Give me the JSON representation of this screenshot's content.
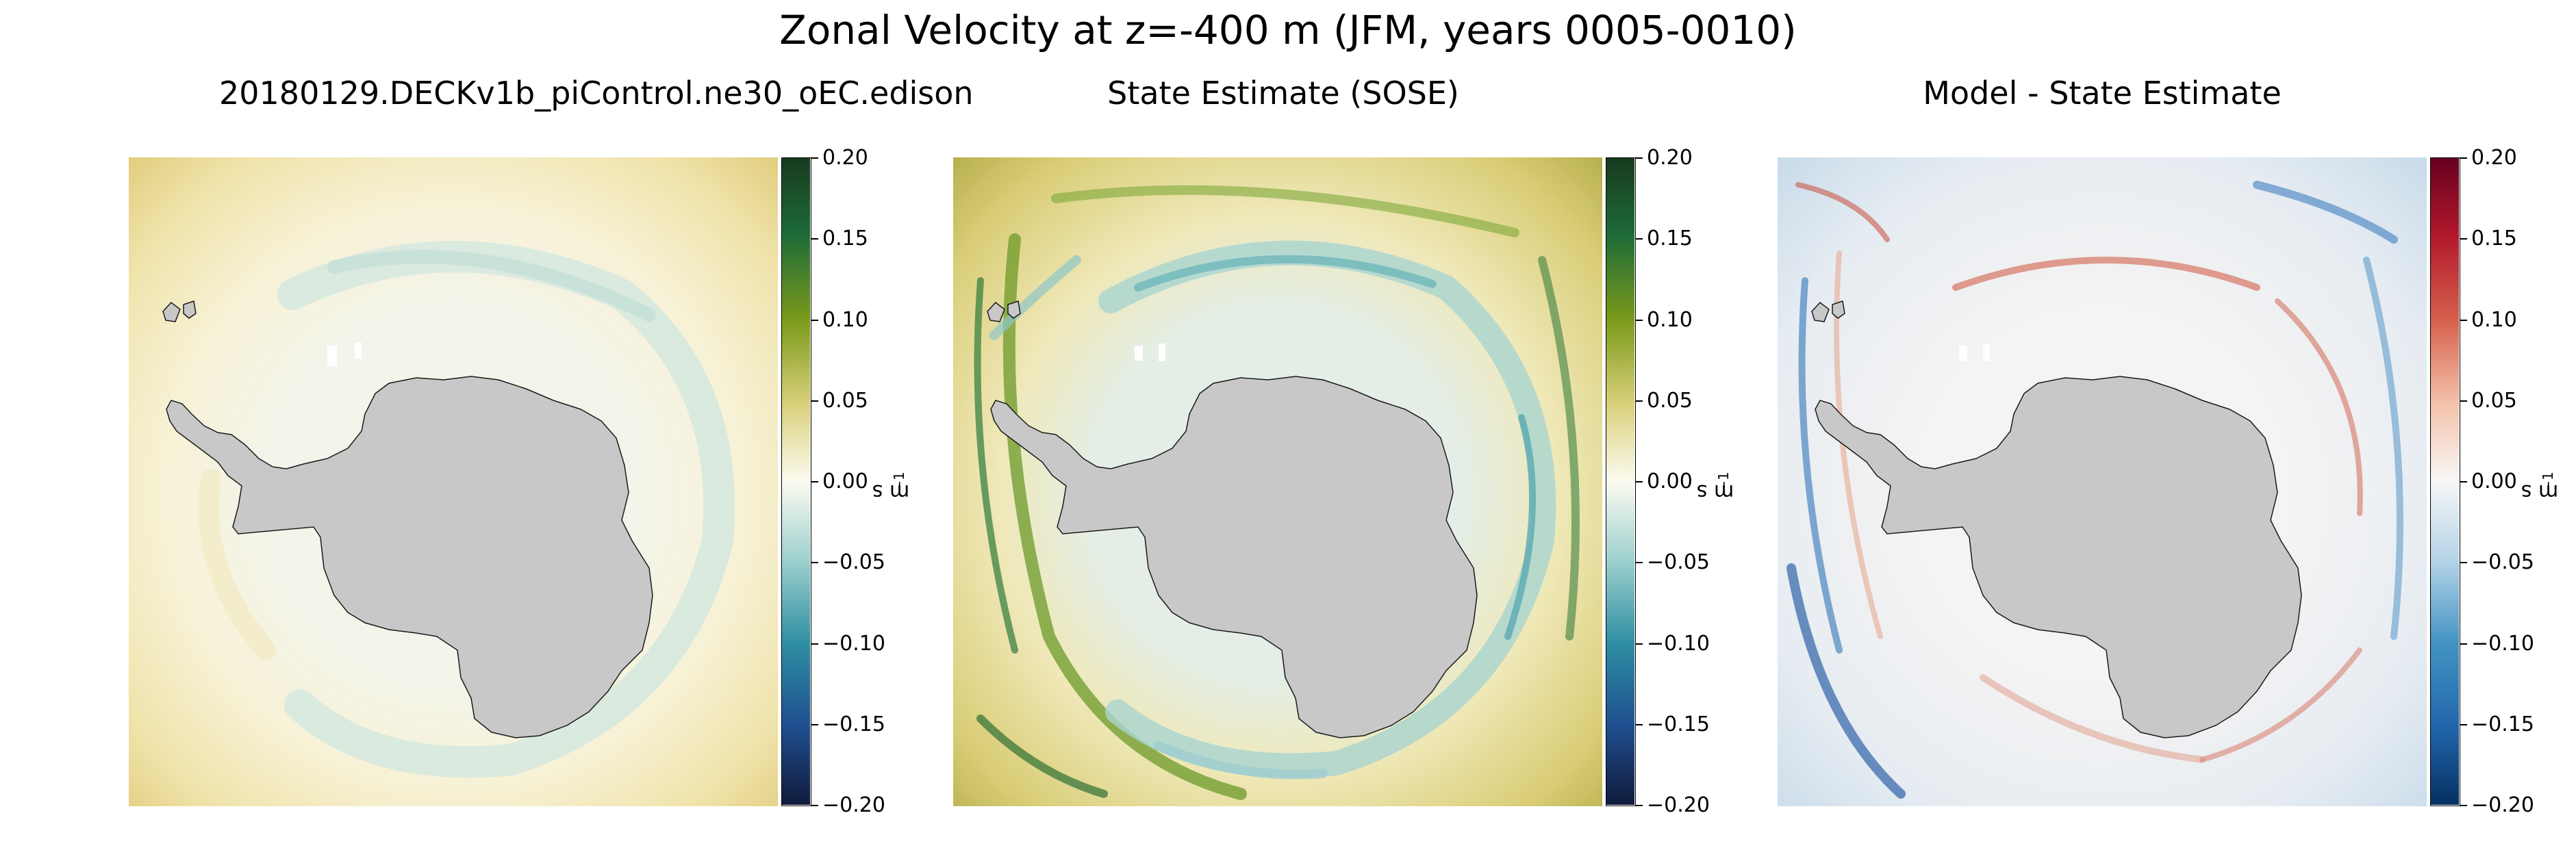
{
  "figure": {
    "title": "Zonal Velocity at z=-400 m (JFM, years 0005-0010)"
  },
  "panels": [
    {
      "id": "model",
      "title": "20180129.DECKv1b_piControl.ne30_oEC.edison",
      "colormap": "delta",
      "field_description": "mostly weak positive (yellowish) flow with pale cyan negative band near continent"
    },
    {
      "id": "obs",
      "title": "State Estimate (SOSE)",
      "colormap": "delta",
      "field_description": "strong banded structure, dark green positive and cyan negative eddies"
    },
    {
      "id": "bias",
      "title": "Model - State Estimate",
      "colormap": "RdBu_r",
      "field_description": "mixed red/blue anomalies, mostly near zero"
    }
  ],
  "colorbar": {
    "min": -0.2,
    "max": 0.2,
    "tick_labels": [
      "0.20",
      "0.15",
      "0.10",
      "0.05",
      "0.00",
      "−0.05",
      "−0.10",
      "−0.15",
      "−0.20"
    ],
    "unit_base": "m s",
    "unit_exp": "−1"
  },
  "colors": {
    "land": "#c8c8c8",
    "coastline": "#1a1a1a",
    "delta_top": "#173b1f",
    "delta_zero": "#fcfbf0",
    "delta_bottom": "#101a3c",
    "rdbu_top": "#67001f",
    "rdbu_zero": "#f7f7f7",
    "rdbu_bottom": "#053061"
  }
}
